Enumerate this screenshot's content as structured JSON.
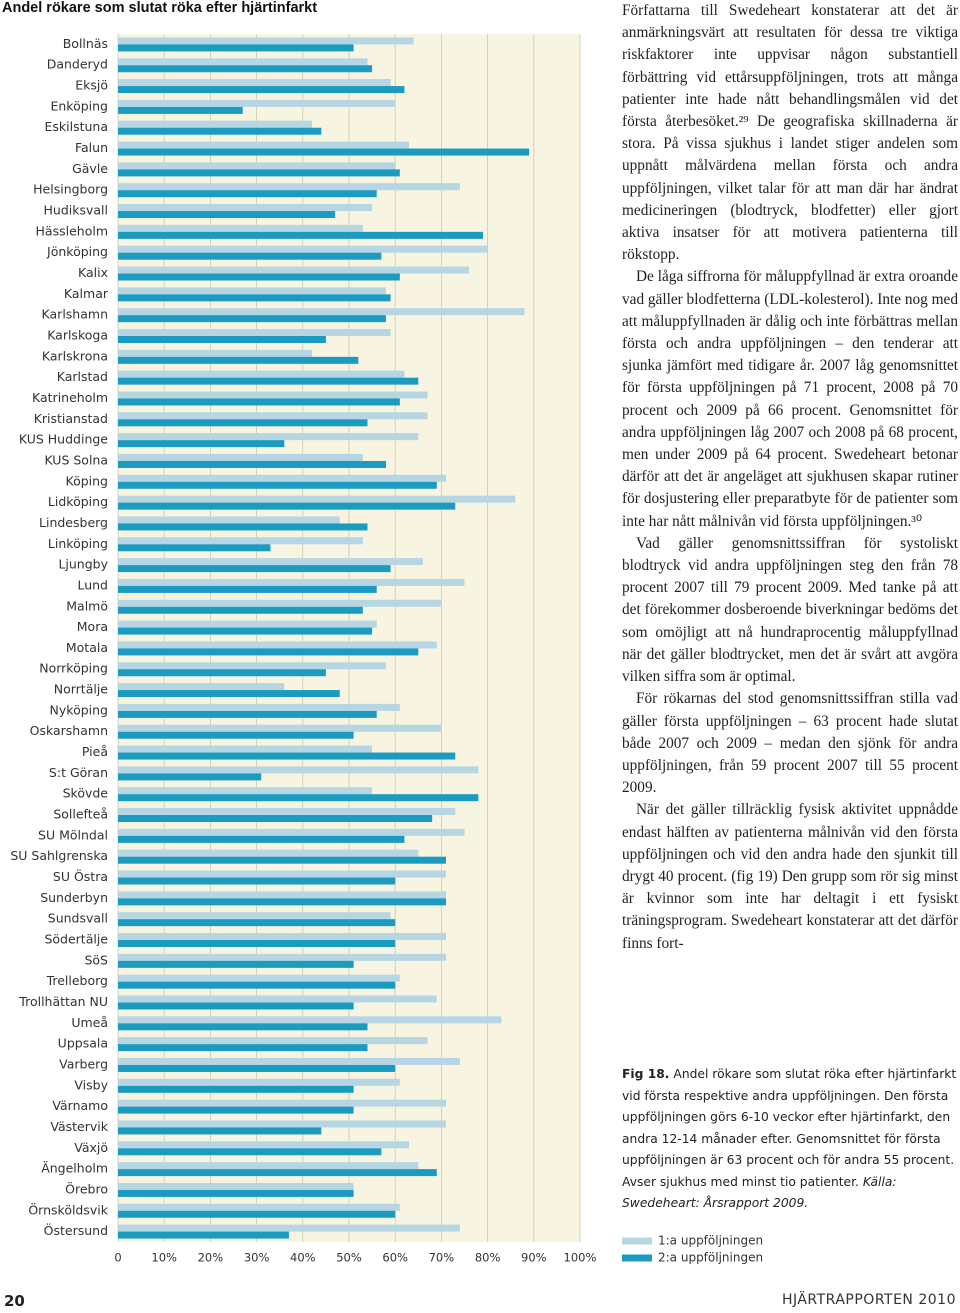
{
  "chart_data": {
    "type": "bar",
    "orientation": "horizontal",
    "title": "Andel rökare som slutat röka efter hjärtinfarkt",
    "categories": [
      "Bollnäs",
      "Danderyd",
      "Eksjö",
      "Enköping",
      "Eskilstuna",
      "Falun",
      "Gävle",
      "Helsingborg",
      "Hudiksvall",
      "Hässleholm",
      "Jönköping",
      "Kalix",
      "Kalmar",
      "Karlshamn",
      "Karlskoga",
      "Karlskrona",
      "Karlstad",
      "Katrineholm",
      "Kristianstad",
      "KUS Huddinge",
      "KUS Solna",
      "Köping",
      "Lidköping",
      "Lindesberg",
      "Linköping",
      "Ljungby",
      "Lund",
      "Malmö",
      "Mora",
      "Motala",
      "Norrköping",
      "Norrtälje",
      "Nyköping",
      "Oskarshamn",
      "Pieå",
      "S:t Göran",
      "Skövde",
      "Sollefteå",
      "SU Mölndal",
      "SU Sahlgrenska",
      "SU Östra",
      "Sunderbyn",
      "Sundsvall",
      "Södertälje",
      "SöS",
      "Trelleborg",
      "Trollhättan NU",
      "Umeå",
      "Uppsala",
      "Varberg",
      "Visby",
      "Värnamo",
      "Västervik",
      "Växjö",
      "Ängelholm",
      "Örebro",
      "Örnsköldsvik",
      "Östersund"
    ],
    "series": [
      {
        "name": "1:a uppföljningen",
        "color": "#b7d6e4",
        "values": [
          64,
          54,
          59,
          60,
          42,
          63,
          60,
          74,
          55,
          53,
          80,
          76,
          58,
          88,
          59,
          42,
          62,
          67,
          67,
          65,
          53,
          71,
          86,
          48,
          53,
          66,
          75,
          70,
          56,
          69,
          58,
          36,
          61,
          70,
          55,
          78,
          55,
          73,
          75,
          65,
          71,
          71,
          59,
          71,
          71,
          61,
          69,
          83,
          67,
          74,
          61,
          71,
          71,
          63,
          65,
          51,
          61,
          74
        ]
      },
      {
        "name": "2:a uppföljningen",
        "color": "#1b9bbf",
        "values": [
          51,
          55,
          62,
          27,
          44,
          89,
          61,
          56,
          47,
          79,
          57,
          61,
          59,
          58,
          45,
          52,
          65,
          61,
          54,
          36,
          58,
          69,
          73,
          54,
          33,
          59,
          56,
          53,
          55,
          65,
          45,
          48,
          56,
          51,
          73,
          31,
          78,
          68,
          62,
          71,
          60,
          71,
          60,
          60,
          51,
          60,
          51,
          54,
          54,
          60,
          51,
          51,
          44,
          57,
          69,
          51,
          60,
          37
        ]
      }
    ],
    "xlim": [
      0,
      100
    ],
    "xticks": [
      0,
      {
        "value": 10,
        "label": "10%"
      },
      {
        "value": 20,
        "label": "20%"
      },
      {
        "value": 30,
        "label": "30%"
      },
      {
        "value": 40,
        "label": "40%"
      },
      {
        "value": 50,
        "label": "50%"
      },
      {
        "value": 60,
        "label": "60%"
      },
      {
        "value": 70,
        "label": "70%"
      },
      {
        "value": 80,
        "label": "80%"
      },
      {
        "value": 90,
        "label": "90%"
      },
      {
        "value": 100,
        "label": "100%"
      }
    ],
    "grid": true
  },
  "text": {
    "paragraphs": [
      "Författarna till Swedeheart konstaterar att det är anmärkningsvärt att resultaten för dessa tre viktiga riskfaktorer inte uppvisar någon substantiell förbättring vid ettårsuppföljningen, trots att många patienter inte hade nått behandlingsmålen vid det första återbesöket.²⁹ De geografiska skillnaderna är stora. På vissa sjukhus i landet stiger andelen som uppnått målvärdena mellan första och andra uppföljningen, vilket talar för att man där har ändrat medicineringen (blodtryck, blodfetter) eller gjort aktiva insatser för att motivera patienterna till rökstopp.",
      "De låga siffrorna för måluppfyllnad är extra oroande vad gäller blodfetterna (LDL-kolesterol). Inte nog med att måluppfyllnaden är dålig och inte förbättras mellan första och andra uppföljningen – den tenderar att sjunka jämfört med tidigare år. 2007 låg genomsnittet för första uppföljningen på 71 procent, 2008 på 70 procent och 2009 på 66 procent. Genomsnittet för andra uppföljningen låg 2007 och 2008 på 68 procent, men under 2009 på 64 procent. Swedeheart betonar därför att det är angeläget att sjukhusen skapar rutiner för dosjustering eller preparatbyte för de patienter som inte har nått målnivån vid första uppföljningen.³⁰",
      "Vad gäller genomsnittssiffran för systoliskt blodtryck vid andra uppföljningen steg den från 78 procent 2007 till 79 procent 2009. Med tanke på att det förekommer dosberoende biverkningar bedöms det som omöjligt att nå hundraprocentig måluppfyllnad när det gäller blodtrycket, men det är svårt att avgöra vilken siffra som är optimal.",
      "För rökarnas del stod genomsnittssiffran stilla vad gäller första uppföljningen – 63 procent hade slutat både 2007 och 2009 – medan den sjönk för andra uppföljningen, från 59 procent 2007 till 55 procent 2009.",
      "När det gäller tillräcklig fysisk aktivitet uppnådde endast hälften av patienterna målnivån vid den första uppföljningen och vid den andra hade den sjunkit till drygt 40 procent. (fig 19) Den grupp som rör sig minst är kvinnor som inte har deltagit i ett fysiskt träningsprogram. Swedeheart konstaterar att det därför finns fort-"
    ]
  },
  "caption": {
    "label": "Fig 18.",
    "text": "Andel rökare som slutat röka efter hjärtinfarkt vid första respektive andra uppföljningen. Den första uppföljningen görs 6-10 veckor efter hjärtinfarkt, den andra 12-14 månader efter. Genomsnittet för första uppföljningen är 63 procent och för andra 55 procent. Avser sjukhus med minst tio patienter.",
    "source": "Källa: Swedeheart: Årsrapport 2009."
  },
  "footer": {
    "page": 20,
    "title": "HJÄRTRAPPORTEN 2010"
  }
}
